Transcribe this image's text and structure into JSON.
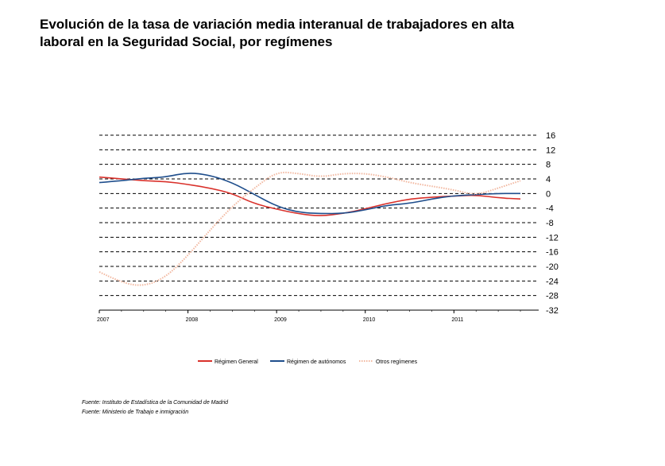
{
  "title_line1": "Evolución de la tasa de variación media interanual de trabajadores en alta",
  "title_line2": "laboral en la Seguridad Social, por  regímenes",
  "sources": [
    "Fuente: Instituto de Estadística de la Comunidad de Madrid",
    "Fuente: Ministerio de Trabajo e inmigración"
  ],
  "chart_data": {
    "type": "line",
    "title": "Evolución de la tasa de variación media interanual de trabajadores en alta laboral en la Seguridad Social, por  regímenes",
    "xlabel": "",
    "ylabel": "",
    "ylim": [
      -32,
      16
    ],
    "yticks": [
      16,
      12,
      8,
      4,
      0,
      -4,
      -8,
      -12,
      -16,
      -20,
      -24,
      -28,
      -32
    ],
    "year_labels": [
      "2007",
      "2008",
      "2009",
      "2010",
      "2011"
    ],
    "grid": true,
    "grid_style": "dashed",
    "y_axis_position": "right",
    "legend_position": "bottom",
    "x": [
      2007.0,
      2007.25,
      2007.5,
      2007.75,
      2008.0,
      2008.25,
      2008.5,
      2008.75,
      2009.0,
      2009.25,
      2009.5,
      2009.75,
      2010.0,
      2010.25,
      2010.5,
      2010.75,
      2011.0,
      2011.25,
      2011.5,
      2011.75
    ],
    "series": [
      {
        "name": "Régimen General",
        "color": "#d9312b",
        "style": "solid",
        "values": [
          4.5,
          4.0,
          3.5,
          3.3,
          2.5,
          1.5,
          0.0,
          -2.8,
          -4.3,
          -5.6,
          -6.2,
          -5.5,
          -4.2,
          -2.7,
          -1.5,
          -1.0,
          -0.7,
          -0.4,
          -1.2,
          -1.5
        ]
      },
      {
        "name": "Régimen de autónomos",
        "color": "#1f4e8c",
        "style": "solid",
        "values": [
          3.0,
          3.5,
          4.2,
          4.5,
          5.8,
          5.0,
          3.0,
          -0.3,
          -3.5,
          -5.2,
          -5.5,
          -5.5,
          -4.5,
          -3.2,
          -2.7,
          -1.5,
          -0.6,
          -0.3,
          0.0,
          0.0
        ]
      },
      {
        "name": "Otros regímenes",
        "color": "#f2b8a0",
        "style": "dotted",
        "values": [
          -21.5,
          -24.5,
          -25.5,
          -23.0,
          -17.0,
          -10.0,
          -3.5,
          1.5,
          6.0,
          5.5,
          4.5,
          5.5,
          5.5,
          4.5,
          3.0,
          2.0,
          1.0,
          -0.5,
          1.5,
          3.5
        ]
      }
    ]
  }
}
